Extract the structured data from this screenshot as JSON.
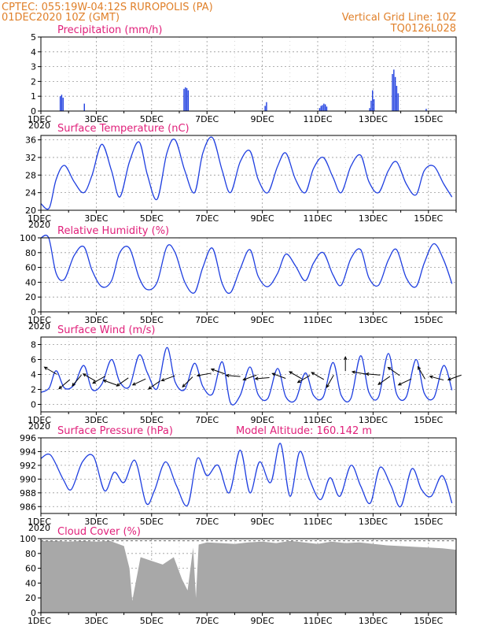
{
  "header": {
    "line1": "CPTEC:   055:19W-04:12S   RUROPOLIS (PA)",
    "line2": "01DEC2020 10Z (GMT)",
    "grid_note": "Vertical Grid Line: 10Z",
    "code": "TQ0126L028"
  },
  "colors": {
    "line": "#1f3fe0",
    "bar": "#1f3fe0",
    "cloud": "#a8a8a8",
    "title": "#e0207a",
    "header": "#e0802a"
  },
  "x_days": [
    "1DEC",
    "3DEC",
    "5DEC",
    "7DEC",
    "9DEC",
    "11DEC",
    "13DEC",
    "15DEC"
  ],
  "year_label": "2020",
  "chart_data": [
    {
      "type": "bar",
      "title": "Precipitation (mm/h)",
      "ylim": [
        0,
        5
      ],
      "yticks": [
        "0",
        "1",
        "2",
        "3",
        "4",
        "5"
      ],
      "x_units": "days since 01DEC2020 10Z",
      "events": [
        {
          "x": 0.68,
          "values": [
            1.0,
            1.1,
            0.9
          ]
        },
        {
          "x": 1.55,
          "values": [
            0.5
          ]
        },
        {
          "x": 5.15,
          "values": [
            1.5,
            1.6,
            1.55,
            1.4
          ]
        },
        {
          "x": 8.08,
          "values": [
            0.35,
            0.6
          ]
        },
        {
          "x": 10.05,
          "values": [
            0.2,
            0.35,
            0.4,
            0.5,
            0.45,
            0.3
          ]
        },
        {
          "x": 11.86,
          "values": [
            0.2,
            0.7,
            1.4,
            0.8
          ]
        },
        {
          "x": 12.68,
          "values": [
            2.5,
            2.8,
            2.3,
            1.7,
            1.2
          ]
        },
        {
          "x": 13.9,
          "values": [
            0.15
          ]
        }
      ]
    },
    {
      "type": "line",
      "title": "Surface Temperature (nC)",
      "ylim": [
        20,
        37
      ],
      "yticks": [
        "20",
        "24",
        "28",
        "32",
        "36"
      ],
      "x": [
        0,
        0.3,
        0.55,
        0.85,
        1.2,
        1.55,
        1.85,
        2.2,
        2.55,
        2.85,
        3.2,
        3.55,
        3.85,
        4.2,
        4.55,
        4.85,
        5.2,
        5.55,
        5.85,
        6.2,
        6.55,
        6.85,
        7.2,
        7.55,
        7.85,
        8.2,
        8.55,
        8.85,
        9.2,
        9.55,
        9.85,
        10.2,
        10.55,
        10.85,
        11.2,
        11.55,
        11.85,
        12.2,
        12.55,
        12.85,
        13.2,
        13.55,
        13.85,
        14.2,
        14.55,
        14.85
      ],
      "y": [
        21.5,
        20.5,
        27,
        30.2,
        26.5,
        24,
        28,
        35,
        29,
        23,
        31,
        35.5,
        28,
        22.5,
        33,
        36,
        29,
        24,
        33,
        36.5,
        29,
        24,
        31,
        33.5,
        27,
        24,
        30,
        33,
        27,
        24,
        29.5,
        32,
        27.5,
        24,
        30,
        32.5,
        26.5,
        24,
        29,
        31,
        26,
        23.5,
        29,
        30,
        26,
        23
      ],
      "color": "#1f3fe0"
    },
    {
      "type": "line",
      "title": "Relative Humidity (%)",
      "ylim": [
        0,
        100
      ],
      "yticks": [
        "0",
        "20",
        "40",
        "60",
        "80",
        "100"
      ],
      "x": [
        0,
        0.28,
        0.55,
        0.85,
        1.2,
        1.55,
        1.85,
        2.2,
        2.55,
        2.85,
        3.2,
        3.55,
        3.85,
        4.2,
        4.55,
        4.85,
        5.2,
        5.55,
        5.85,
        6.2,
        6.55,
        6.85,
        7.2,
        7.55,
        7.85,
        8.2,
        8.55,
        8.85,
        9.2,
        9.55,
        9.85,
        10.2,
        10.55,
        10.85,
        11.2,
        11.55,
        11.85,
        12.2,
        12.55,
        12.85,
        13.2,
        13.55,
        13.85,
        14.2,
        14.55,
        14.85
      ],
      "y": [
        100,
        100,
        52,
        44,
        76,
        88,
        56,
        34,
        42,
        80,
        86,
        46,
        30,
        40,
        88,
        80,
        40,
        26,
        60,
        86,
        38,
        26,
        58,
        84,
        48,
        34,
        52,
        78,
        62,
        42,
        66,
        80,
        50,
        36,
        72,
        84,
        46,
        36,
        70,
        84,
        46,
        34,
        66,
        92,
        70,
        38
      ],
      "color": "#1f3fe0"
    },
    {
      "type": "line",
      "title": "Surface Wind (m/s)",
      "ylim": [
        -1,
        9
      ],
      "yticks": [
        "0",
        "2",
        "4",
        "6",
        "8"
      ],
      "x": [
        0,
        0.3,
        0.55,
        0.85,
        1.2,
        1.55,
        1.85,
        2.2,
        2.55,
        2.85,
        3.2,
        3.55,
        3.85,
        4.2,
        4.55,
        4.85,
        5.2,
        5.55,
        5.85,
        6.2,
        6.55,
        6.85,
        7.2,
        7.55,
        7.85,
        8.2,
        8.55,
        8.85,
        9.2,
        9.55,
        9.85,
        10.2,
        10.55,
        10.85,
        11.2,
        11.55,
        11.85,
        12.2,
        12.55,
        12.85,
        13.2,
        13.55,
        13.85,
        14.2,
        14.55,
        14.85
      ],
      "y": [
        1.6,
        2.2,
        4.5,
        2.2,
        2.6,
        5.2,
        2.0,
        2.7,
        6.0,
        3.0,
        2.4,
        6.6,
        4.2,
        2.1,
        7.6,
        3.0,
        2.0,
        5.5,
        2.4,
        1.4,
        5.7,
        0.2,
        1.2,
        5.0,
        1.3,
        0.8,
        4.8,
        1.0,
        0.6,
        4.2,
        1.2,
        1.0,
        5.6,
        1.2,
        0.8,
        6.5,
        1.6,
        1.0,
        6.8,
        1.4,
        1.0,
        6.0,
        1.5,
        0.9,
        5.2,
        1.9
      ],
      "color": "#1f3fe0",
      "arrows": [
        {
          "x": 0.35,
          "y": 4.5,
          "dir": 150
        },
        {
          "x": 0.85,
          "y": 2.7,
          "dir": 220
        },
        {
          "x": 1.3,
          "y": 3.2,
          "dir": 230
        },
        {
          "x": 1.75,
          "y": 3.6,
          "dir": 150
        },
        {
          "x": 2.1,
          "y": 3.3,
          "dir": 210
        },
        {
          "x": 2.5,
          "y": 2.9,
          "dir": 160
        },
        {
          "x": 2.95,
          "y": 3.0,
          "dir": 215
        },
        {
          "x": 3.55,
          "y": 3.0,
          "dir": 205
        },
        {
          "x": 4.1,
          "y": 2.6,
          "dir": 215
        },
        {
          "x": 4.6,
          "y": 3.5,
          "dir": 200
        },
        {
          "x": 5.3,
          "y": 3.0,
          "dir": 225
        },
        {
          "x": 5.9,
          "y": 4.0,
          "dir": 190
        },
        {
          "x": 6.4,
          "y": 4.4,
          "dir": 160
        },
        {
          "x": 6.95,
          "y": 3.8,
          "dir": 175
        },
        {
          "x": 7.55,
          "y": 3.6,
          "dir": 200
        },
        {
          "x": 8.0,
          "y": 3.5,
          "dir": 185
        },
        {
          "x": 8.6,
          "y": 3.8,
          "dir": 160
        },
        {
          "x": 9.2,
          "y": 3.9,
          "dir": 150
        },
        {
          "x": 9.5,
          "y": 3.4,
          "dir": 210
        },
        {
          "x": 10.0,
          "y": 3.8,
          "dir": 150
        },
        {
          "x": 10.45,
          "y": 3.1,
          "dir": 240
        },
        {
          "x": 11.0,
          "y": 5.4,
          "dir": 90
        },
        {
          "x": 11.5,
          "y": 4.2,
          "dir": 170
        },
        {
          "x": 12.0,
          "y": 4.0,
          "dir": 175
        },
        {
          "x": 12.4,
          "y": 3.2,
          "dir": 215
        },
        {
          "x": 12.75,
          "y": 4.4,
          "dir": 145
        },
        {
          "x": 13.15,
          "y": 3.0,
          "dir": 205
        },
        {
          "x": 13.75,
          "y": 4.2,
          "dir": 120
        },
        {
          "x": 14.3,
          "y": 3.5,
          "dir": 165
        },
        {
          "x": 14.95,
          "y": 3.6,
          "dir": 200
        }
      ]
    },
    {
      "type": "line",
      "title": "Surface Pressure (hPa)",
      "annotation": "Model Altitude: 160.142 m",
      "ylim": [
        985,
        996
      ],
      "yticks": [
        "986",
        "988",
        "990",
        "992",
        "994",
        "996"
      ],
      "x": [
        0,
        0.35,
        0.8,
        1.1,
        1.5,
        1.9,
        2.3,
        2.65,
        3.0,
        3.4,
        3.8,
        4.1,
        4.5,
        4.9,
        5.3,
        5.65,
        6.0,
        6.4,
        6.8,
        7.2,
        7.55,
        7.9,
        8.3,
        8.65,
        9.0,
        9.35,
        9.7,
        10.1,
        10.45,
        10.8,
        11.2,
        11.55,
        11.9,
        12.25,
        12.65,
        13.0,
        13.4,
        13.75,
        14.1,
        14.5,
        14.85
      ],
      "y": [
        993,
        993.5,
        990,
        988.5,
        992.5,
        993.3,
        988.3,
        991,
        989.5,
        992.7,
        986.5,
        988.3,
        992.5,
        989,
        986.2,
        993,
        990.5,
        992,
        988,
        994.2,
        988,
        992.5,
        989.5,
        995.2,
        987.5,
        994,
        990,
        987,
        990.2,
        987.5,
        992,
        989,
        986.5,
        991.7,
        989,
        986,
        991.5,
        988.5,
        987.5,
        990.5,
        986.5
      ],
      "color": "#1f3fe0"
    },
    {
      "type": "area",
      "title": "Cloud Cover (%)",
      "ylim": [
        0,
        100
      ],
      "yticks": [
        "0",
        "20",
        "40",
        "60",
        "80",
        "100"
      ],
      "x": [
        0,
        0.5,
        1,
        1.5,
        2,
        2.5,
        3,
        3.2,
        3.3,
        3.6,
        4.0,
        4.4,
        4.8,
        5.1,
        5.3,
        5.5,
        5.6,
        5.7,
        6.0,
        6.5,
        7.0,
        7.5,
        8.0,
        8.5,
        9.0,
        9.5,
        10.0,
        10.5,
        11.0,
        11.5,
        12.0,
        12.5,
        13.0,
        13.5,
        14.0,
        14.5,
        15
      ],
      "y": [
        97,
        97,
        96,
        97,
        96,
        97,
        90,
        60,
        16,
        75,
        70,
        65,
        75,
        45,
        30,
        88,
        20,
        92,
        95,
        94,
        93,
        95,
        96,
        94,
        97,
        95,
        93,
        96,
        94,
        95,
        93,
        91,
        90,
        89,
        88,
        87,
        85
      ],
      "color": "#a8a8a8"
    }
  ]
}
